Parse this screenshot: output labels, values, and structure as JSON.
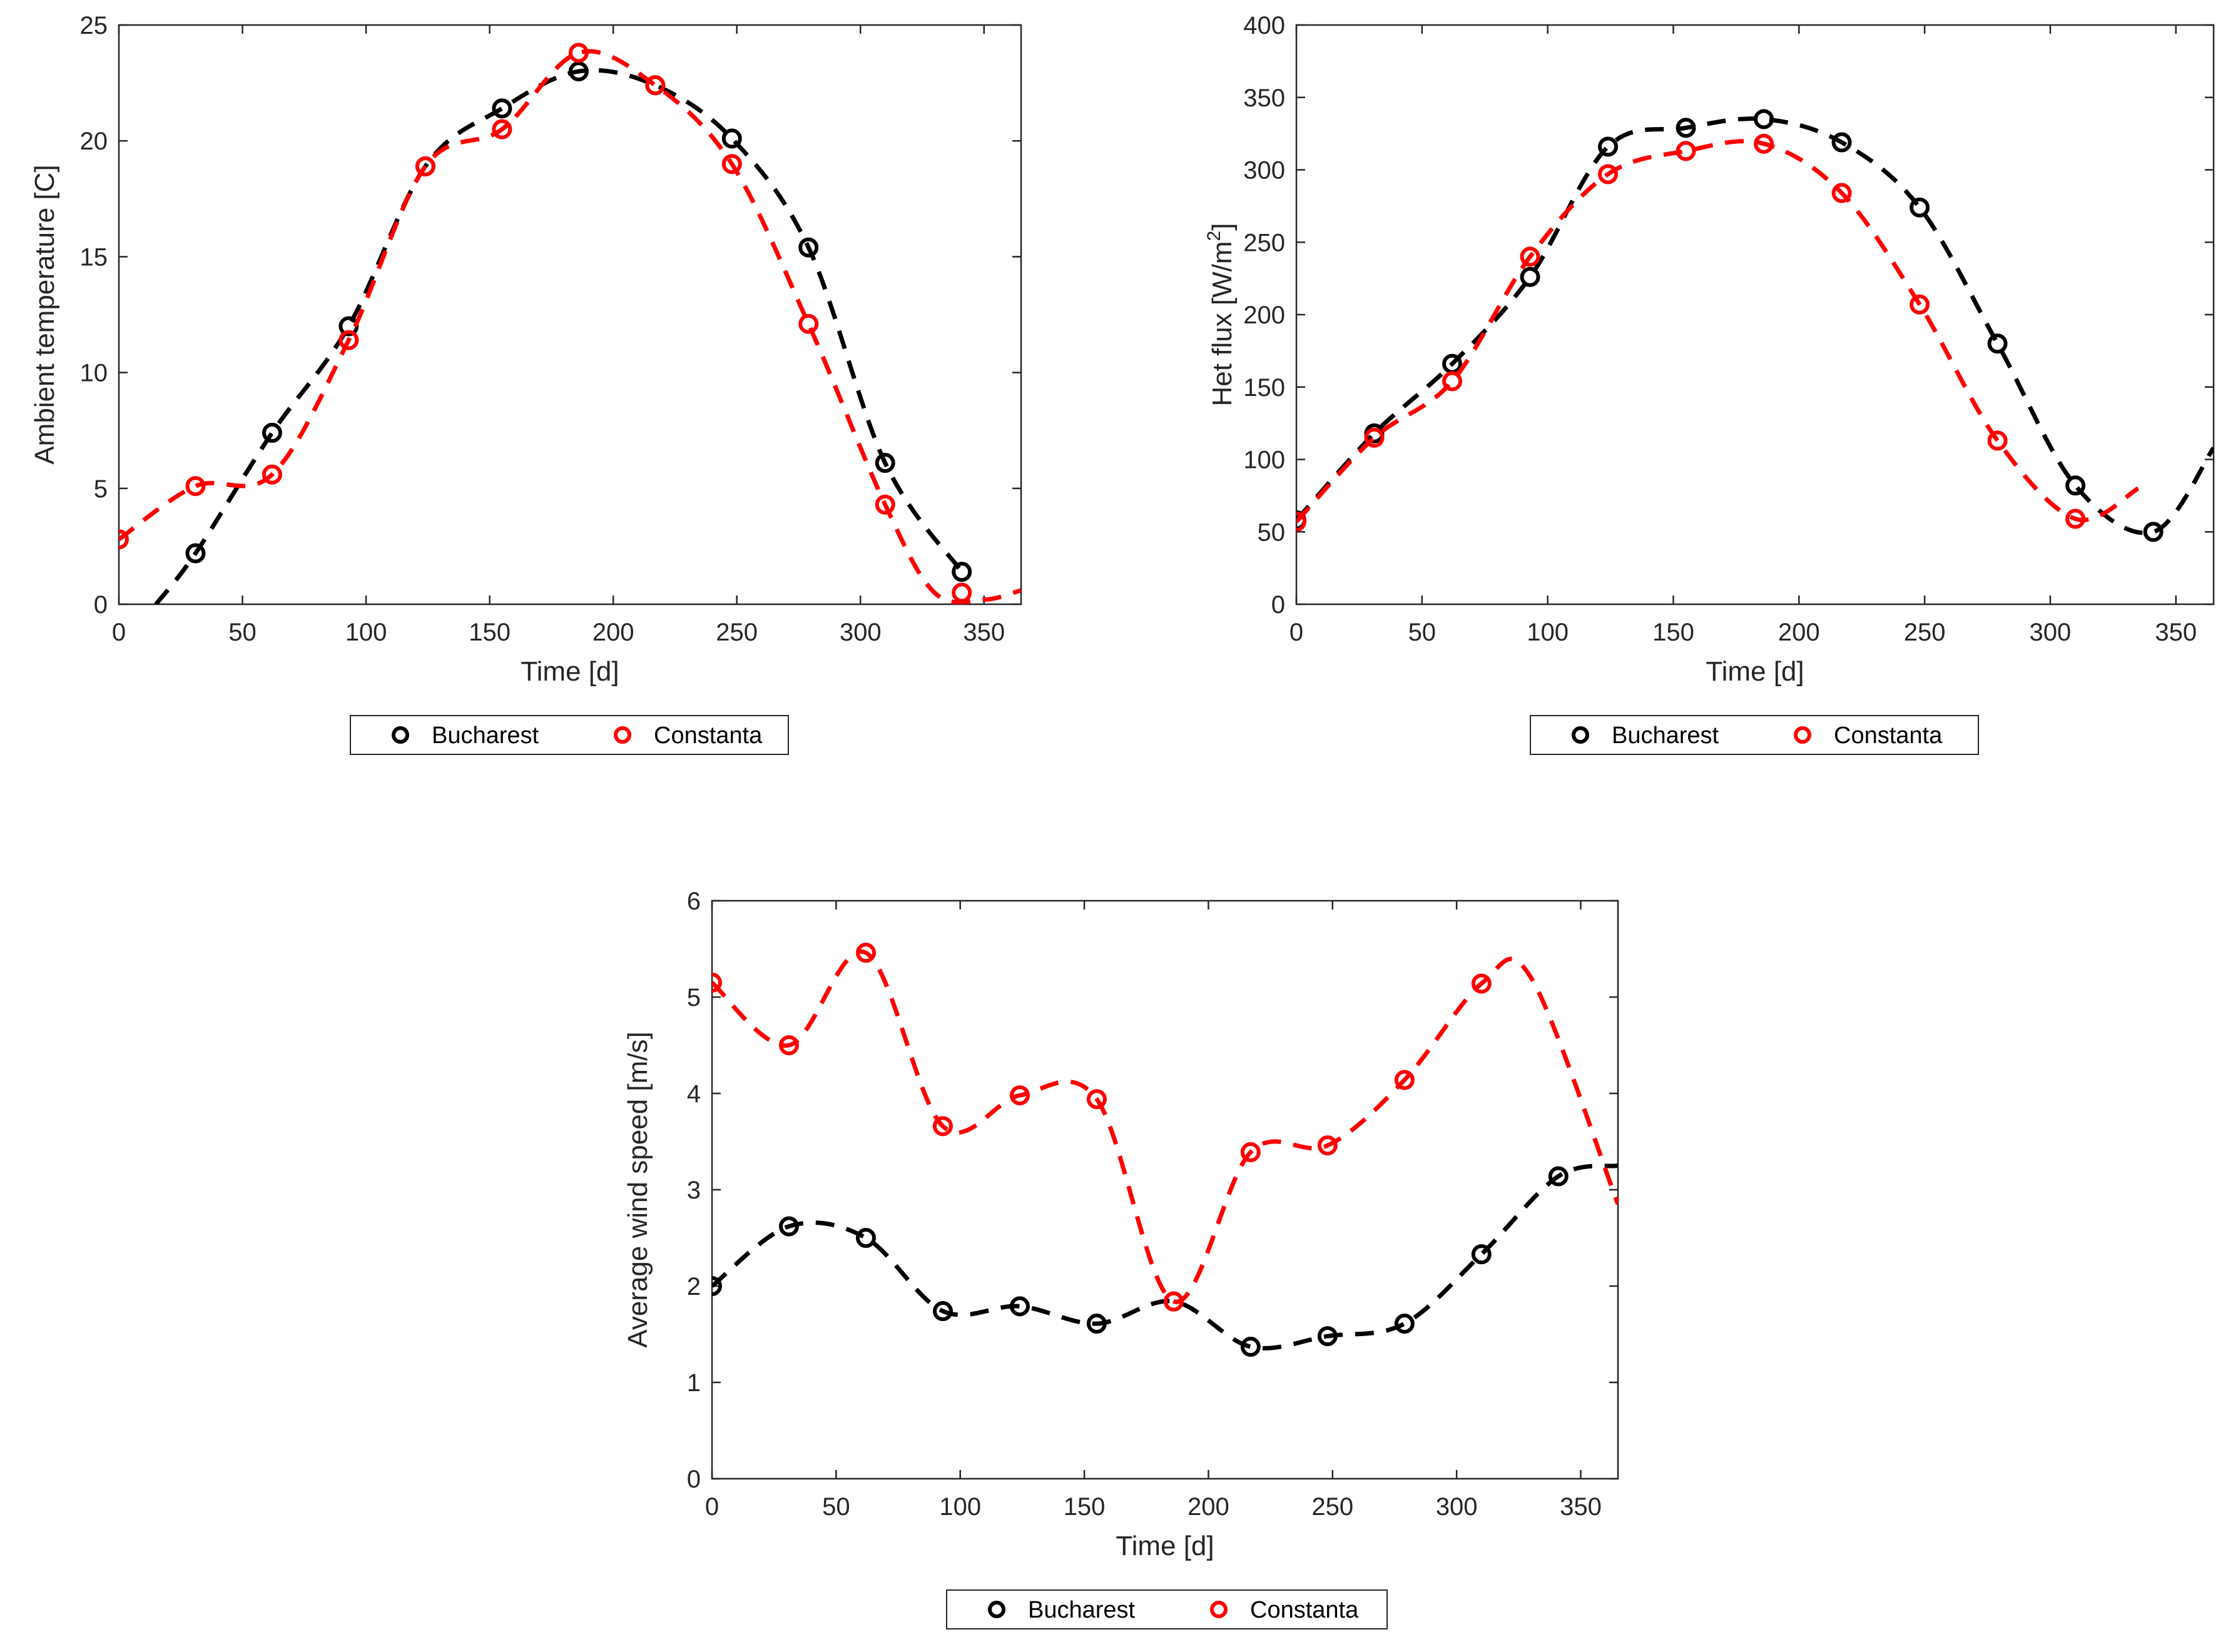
{
  "chart_data": [
    {
      "type": "line",
      "id": "temperature",
      "title": "",
      "xlabel": "Time [d]",
      "ylabel": "Ambient temperature [C]",
      "xlim": [
        0,
        365
      ],
      "ylim": [
        0,
        25
      ],
      "xticks": [
        0,
        50,
        100,
        150,
        200,
        250,
        300,
        350
      ],
      "yticks": [
        0,
        5,
        10,
        15,
        20,
        25
      ],
      "legend": [
        "Bucharest",
        "Constanta"
      ],
      "legend_position": "below",
      "series": [
        {
          "name": "Bucharest",
          "color": "#000000",
          "x": [
            31,
            62,
            93,
            124,
            155,
            186,
            217,
            248,
            279,
            310,
            341
          ],
          "values": [
            2.2,
            7.4,
            12.0,
            18.9,
            21.4,
            23.0,
            22.4,
            20.1,
            15.4,
            6.1,
            1.4
          ],
          "curve": [
            [
              15,
              0
            ],
            [
              31,
              2.2
            ],
            [
              62,
              7.4
            ],
            [
              93,
              12.0
            ],
            [
              124,
              18.9
            ],
            [
              155,
              21.4
            ],
            [
              186,
              23.0
            ],
            [
              217,
              22.4
            ],
            [
              248,
              20.1
            ],
            [
              279,
              15.4
            ],
            [
              310,
              6.1
            ],
            [
              341,
              1.4
            ]
          ]
        },
        {
          "name": "Constanta",
          "color": "#ff0000",
          "x": [
            0,
            31,
            62,
            93,
            124,
            155,
            186,
            217,
            248,
            279,
            310,
            341
          ],
          "values": [
            2.8,
            5.1,
            5.6,
            11.4,
            18.9,
            20.5,
            23.8,
            22.4,
            19.0,
            12.1,
            4.3,
            0.5
          ],
          "curve": [
            [
              0,
              2.8
            ],
            [
              31,
              5.1
            ],
            [
              62,
              5.6
            ],
            [
              93,
              11.4
            ],
            [
              124,
              18.9
            ],
            [
              155,
              20.5
            ],
            [
              186,
              23.8
            ],
            [
              217,
              22.4
            ],
            [
              248,
              19.0
            ],
            [
              279,
              12.1
            ],
            [
              310,
              4.3
            ],
            [
              330,
              0.5
            ],
            [
              350,
              0.2
            ],
            [
              365,
              0.6
            ]
          ]
        }
      ]
    },
    {
      "type": "line",
      "id": "heat-flux",
      "title": "",
      "xlabel": "Time [d]",
      "ylabel": "Het flux [W/m",
      "ylabel_superscript": "2",
      "ylabel_suffix": "]",
      "xlim": [
        0,
        365
      ],
      "ylim": [
        0,
        400
      ],
      "xticks": [
        0,
        50,
        100,
        150,
        200,
        250,
        300,
        350
      ],
      "yticks": [
        0,
        50,
        100,
        150,
        200,
        250,
        300,
        350,
        400
      ],
      "legend": [
        "Bucharest",
        "Constanta"
      ],
      "legend_position": "below",
      "series": [
        {
          "name": "Bucharest",
          "color": "#000000",
          "x": [
            0,
            31,
            62,
            93,
            124,
            155,
            186,
            217,
            248,
            279,
            310,
            341
          ],
          "values": [
            58,
            118,
            166,
            226,
            316,
            329,
            335,
            319,
            274,
            180,
            82,
            50
          ],
          "curve": [
            [
              0,
              58
            ],
            [
              31,
              118
            ],
            [
              62,
              166
            ],
            [
              93,
              226
            ],
            [
              124,
              316
            ],
            [
              155,
              329
            ],
            [
              186,
              335
            ],
            [
              217,
              319
            ],
            [
              248,
              274
            ],
            [
              279,
              180
            ],
            [
              310,
              82
            ],
            [
              341,
              50
            ],
            [
              365,
              108
            ]
          ]
        },
        {
          "name": "Constanta",
          "color": "#ff0000",
          "x": [
            0,
            31,
            62,
            93,
            124,
            155,
            186,
            217,
            248,
            279,
            310
          ],
          "values": [
            57,
            115,
            154,
            240,
            297,
            313,
            318,
            284,
            207,
            113,
            59
          ],
          "curve": [
            [
              0,
              57
            ],
            [
              31,
              115
            ],
            [
              62,
              154
            ],
            [
              93,
              240
            ],
            [
              124,
              297
            ],
            [
              155,
              313
            ],
            [
              186,
              318
            ],
            [
              217,
              284
            ],
            [
              248,
              207
            ],
            [
              279,
              113
            ],
            [
              310,
              59
            ],
            [
              335,
              80
            ]
          ]
        }
      ]
    },
    {
      "type": "line",
      "id": "wind-speed",
      "title": "",
      "xlabel": "Time [d]",
      "ylabel": "Average wind speed [m/s]",
      "xlim": [
        0,
        365
      ],
      "ylim": [
        0,
        6
      ],
      "xticks": [
        0,
        50,
        100,
        150,
        200,
        250,
        300,
        350
      ],
      "yticks": [
        0,
        1,
        2,
        3,
        4,
        5,
        6
      ],
      "legend": [
        "Bucharest",
        "Constanta"
      ],
      "legend_position": "below",
      "series": [
        {
          "name": "Bucharest",
          "color": "#000000",
          "x": [
            0,
            31,
            62,
            93,
            124,
            155,
            186,
            217,
            248,
            279,
            310,
            341
          ],
          "values": [
            2.0,
            2.62,
            2.5,
            1.74,
            1.79,
            1.61,
            1.84,
            1.37,
            1.48,
            1.61,
            2.33,
            3.14
          ],
          "curve": [
            [
              0,
              2.0
            ],
            [
              31,
              2.62
            ],
            [
              62,
              2.5
            ],
            [
              93,
              1.74
            ],
            [
              124,
              1.79
            ],
            [
              155,
              1.61
            ],
            [
              186,
              1.84
            ],
            [
              217,
              1.37
            ],
            [
              248,
              1.48
            ],
            [
              279,
              1.61
            ],
            [
              310,
              2.33
            ],
            [
              341,
              3.14
            ],
            [
              365,
              3.25
            ]
          ]
        },
        {
          "name": "Constanta",
          "color": "#ff0000",
          "x": [
            0,
            31,
            62,
            93,
            124,
            155,
            186,
            217,
            248,
            279,
            310
          ],
          "values": [
            5.15,
            4.5,
            5.46,
            3.66,
            3.98,
            3.94,
            1.84,
            3.39,
            3.46,
            4.14,
            5.14
          ],
          "curve": [
            [
              0,
              5.15
            ],
            [
              31,
              4.5
            ],
            [
              62,
              5.46
            ],
            [
              93,
              3.66
            ],
            [
              124,
              3.98
            ],
            [
              155,
              3.94
            ],
            [
              186,
              1.84
            ],
            [
              217,
              3.39
            ],
            [
              248,
              3.46
            ],
            [
              279,
              4.14
            ],
            [
              310,
              5.14
            ],
            [
              330,
              5.2
            ],
            [
              365,
              2.85
            ]
          ]
        }
      ]
    }
  ]
}
